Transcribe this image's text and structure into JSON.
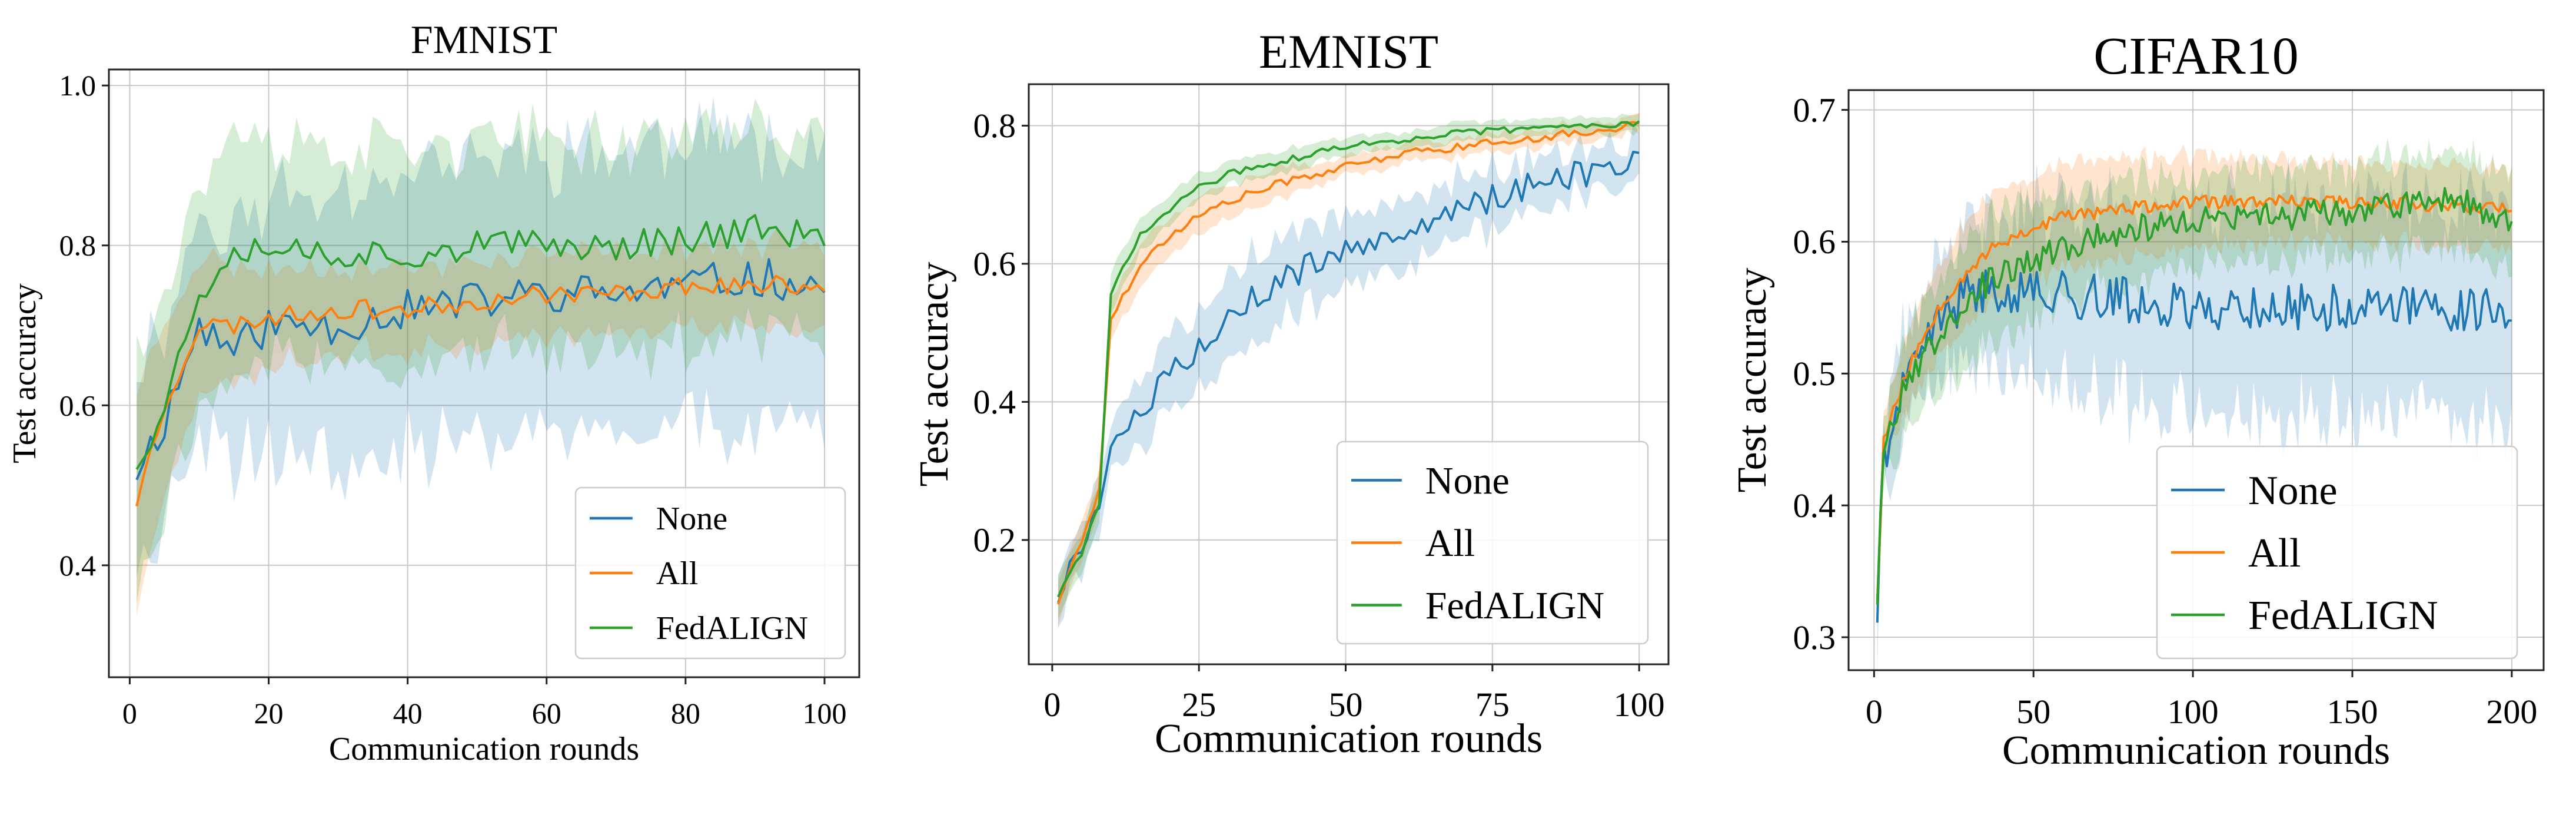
{
  "chart_data": [
    {
      "type": "line",
      "title": "FMNIST",
      "xlabel": "Communication rounds",
      "ylabel": "Test accuracy",
      "xlim": [
        -3,
        105
      ],
      "ylim": [
        0.26,
        1.02
      ],
      "xticks": [
        0,
        20,
        40,
        60,
        80,
        100
      ],
      "yticks": [
        0.4,
        0.6,
        0.8,
        1.0
      ],
      "xtick_labels": [
        "0",
        "20",
        "40",
        "60",
        "80",
        "100"
      ],
      "ytick_labels": [
        "0.4",
        "0.6",
        "0.8",
        "1.0"
      ],
      "grid": true,
      "legend_position": "lower-right",
      "rounds": 100,
      "series": [
        {
          "name": "None",
          "color": "#1f77b4",
          "anchors": [
            [
              1,
              0.52
            ],
            [
              5,
              0.58
            ],
            [
              10,
              0.7
            ],
            [
              15,
              0.67
            ],
            [
              20,
              0.7
            ],
            [
              30,
              0.7
            ],
            [
              40,
              0.72
            ],
            [
              50,
              0.73
            ],
            [
              60,
              0.74
            ],
            [
              70,
              0.74
            ],
            [
              80,
              0.75
            ],
            [
              90,
              0.76
            ],
            [
              100,
              0.75
            ]
          ],
          "band_anchors": [
            [
              1,
              0.14
            ],
            [
              5,
              0.12
            ],
            [
              10,
              0.14
            ],
            [
              20,
              0.16
            ],
            [
              40,
              0.18
            ],
            [
              60,
              0.18
            ],
            [
              80,
              0.18
            ],
            [
              100,
              0.18
            ]
          ],
          "noise": 0.025,
          "band_noise": 0.04,
          "seed": 11
        },
        {
          "name": "All",
          "color": "#ff7f0e",
          "anchors": [
            [
              1,
              0.48
            ],
            [
              5,
              0.6
            ],
            [
              10,
              0.7
            ],
            [
              15,
              0.7
            ],
            [
              20,
              0.71
            ],
            [
              30,
              0.72
            ],
            [
              40,
              0.72
            ],
            [
              50,
              0.73
            ],
            [
              60,
              0.74
            ],
            [
              70,
              0.74
            ],
            [
              80,
              0.75
            ],
            [
              90,
              0.75
            ],
            [
              100,
              0.75
            ]
          ],
          "band_anchors": [
            [
              1,
              0.14
            ],
            [
              5,
              0.1
            ],
            [
              20,
              0.06
            ],
            [
              40,
              0.05
            ],
            [
              60,
              0.05
            ],
            [
              80,
              0.05
            ],
            [
              100,
              0.05
            ]
          ],
          "noise": 0.012,
          "band_noise": 0.01,
          "seed": 23
        },
        {
          "name": "FedALIGN",
          "color": "#2ca02c",
          "anchors": [
            [
              1,
              0.53
            ],
            [
              5,
              0.6
            ],
            [
              10,
              0.74
            ],
            [
              15,
              0.8
            ],
            [
              20,
              0.8
            ],
            [
              30,
              0.79
            ],
            [
              40,
              0.79
            ],
            [
              50,
              0.8
            ],
            [
              60,
              0.8
            ],
            [
              70,
              0.8
            ],
            [
              80,
              0.81
            ],
            [
              90,
              0.82
            ],
            [
              100,
              0.81
            ]
          ],
          "band_anchors": [
            [
              1,
              0.16
            ],
            [
              5,
              0.14
            ],
            [
              15,
              0.13
            ],
            [
              30,
              0.13
            ],
            [
              50,
              0.13
            ],
            [
              70,
              0.13
            ],
            [
              90,
              0.13
            ],
            [
              100,
              0.13
            ]
          ],
          "noise": 0.02,
          "band_noise": 0.03,
          "seed": 37
        }
      ]
    },
    {
      "type": "line",
      "title": "EMNIST",
      "xlabel": "Communication rounds",
      "ylabel": "Test accuracy",
      "xlim": [
        -4,
        105
      ],
      "ylim": [
        0.02,
        0.86
      ],
      "xticks": [
        0,
        25,
        50,
        75,
        100
      ],
      "yticks": [
        0.2,
        0.4,
        0.6,
        0.8
      ],
      "xtick_labels": [
        "0",
        "25",
        "50",
        "75",
        "100"
      ],
      "ytick_labels": [
        "0.2",
        "0.4",
        "0.6",
        "0.8"
      ],
      "grid": true,
      "legend_position": "lower-right",
      "rounds": 100,
      "series": [
        {
          "name": "None",
          "color": "#1f77b4",
          "anchors": [
            [
              1,
              0.12
            ],
            [
              5,
              0.2
            ],
            [
              8,
              0.26
            ],
            [
              10,
              0.32
            ],
            [
              15,
              0.38
            ],
            [
              20,
              0.44
            ],
            [
              25,
              0.48
            ],
            [
              30,
              0.53
            ],
            [
              40,
              0.58
            ],
            [
              50,
              0.62
            ],
            [
              60,
              0.65
            ],
            [
              70,
              0.68
            ],
            [
              80,
              0.71
            ],
            [
              90,
              0.73
            ],
            [
              100,
              0.745
            ]
          ],
          "band_anchors": [
            [
              1,
              0.03
            ],
            [
              10,
              0.04
            ],
            [
              20,
              0.06
            ],
            [
              40,
              0.06
            ],
            [
              60,
              0.05
            ],
            [
              80,
              0.04
            ],
            [
              100,
              0.03
            ]
          ],
          "noise": 0.02,
          "band_noise": 0.015,
          "seed": 5
        },
        {
          "name": "All",
          "color": "#ff7f0e",
          "anchors": [
            [
              1,
              0.11
            ],
            [
              5,
              0.2
            ],
            [
              8,
              0.27
            ],
            [
              10,
              0.52
            ],
            [
              15,
              0.6
            ],
            [
              20,
              0.64
            ],
            [
              25,
              0.67
            ],
            [
              30,
              0.69
            ],
            [
              40,
              0.72
            ],
            [
              50,
              0.74
            ],
            [
              60,
              0.76
            ],
            [
              70,
              0.77
            ],
            [
              80,
              0.78
            ],
            [
              90,
              0.79
            ],
            [
              100,
              0.8
            ]
          ],
          "band_anchors": [
            [
              1,
              0.03
            ],
            [
              10,
              0.03
            ],
            [
              20,
              0.03
            ],
            [
              50,
              0.015
            ],
            [
              100,
              0.012
            ]
          ],
          "noise": 0.006,
          "band_noise": 0.004,
          "seed": 17
        },
        {
          "name": "FedALIGN",
          "color": "#2ca02c",
          "anchors": [
            [
              1,
              0.12
            ],
            [
              5,
              0.18
            ],
            [
              8,
              0.25
            ],
            [
              10,
              0.56
            ],
            [
              15,
              0.64
            ],
            [
              20,
              0.68
            ],
            [
              25,
              0.71
            ],
            [
              30,
              0.73
            ],
            [
              40,
              0.75
            ],
            [
              50,
              0.77
            ],
            [
              60,
              0.78
            ],
            [
              70,
              0.79
            ],
            [
              80,
              0.795
            ],
            [
              90,
              0.8
            ],
            [
              100,
              0.805
            ]
          ],
          "band_anchors": [
            [
              1,
              0.03
            ],
            [
              10,
              0.03
            ],
            [
              20,
              0.02
            ],
            [
              50,
              0.013
            ],
            [
              100,
              0.012
            ]
          ],
          "noise": 0.005,
          "band_noise": 0.003,
          "seed": 29
        }
      ]
    },
    {
      "type": "line",
      "title": "CIFAR10",
      "xlabel": "Communication rounds",
      "ylabel": "Test accuracy",
      "xlim": [
        -8,
        210
      ],
      "ylim": [
        0.275,
        0.715
      ],
      "xticks": [
        0,
        50,
        100,
        150,
        200
      ],
      "yticks": [
        0.3,
        0.4,
        0.5,
        0.6,
        0.7
      ],
      "xtick_labels": [
        "0",
        "50",
        "100",
        "150",
        "200"
      ],
      "ytick_labels": [
        "0.3",
        "0.4",
        "0.5",
        "0.6",
        "0.7"
      ],
      "grid": true,
      "legend_position": "lower-right",
      "rounds": 200,
      "series": [
        {
          "name": "None",
          "color": "#1f77b4",
          "anchors": [
            [
              1,
              0.32
            ],
            [
              3,
              0.44
            ],
            [
              10,
              0.49
            ],
            [
              20,
              0.54
            ],
            [
              30,
              0.56
            ],
            [
              40,
              0.565
            ],
            [
              60,
              0.56
            ],
            [
              80,
              0.555
            ],
            [
              100,
              0.55
            ],
            [
              120,
              0.55
            ],
            [
              140,
              0.55
            ],
            [
              160,
              0.55
            ],
            [
              180,
              0.55
            ],
            [
              200,
              0.55
            ]
          ],
          "band_anchors": [
            [
              1,
              0.02
            ],
            [
              10,
              0.04
            ],
            [
              30,
              0.05
            ],
            [
              60,
              0.07
            ],
            [
              100,
              0.08
            ],
            [
              150,
              0.08
            ],
            [
              200,
              0.08
            ]
          ],
          "noise": 0.018,
          "band_noise": 0.02,
          "seed": 41
        },
        {
          "name": "All",
          "color": "#ff7f0e",
          "anchors": [
            [
              1,
              0.33
            ],
            [
              3,
              0.45
            ],
            [
              10,
              0.5
            ],
            [
              20,
              0.55
            ],
            [
              30,
              0.58
            ],
            [
              40,
              0.6
            ],
            [
              50,
              0.61
            ],
            [
              60,
              0.62
            ],
            [
              80,
              0.625
            ],
            [
              100,
              0.63
            ],
            [
              130,
              0.63
            ],
            [
              160,
              0.63
            ],
            [
              200,
              0.625
            ]
          ],
          "band_anchors": [
            [
              1,
              0.02
            ],
            [
              10,
              0.03
            ],
            [
              30,
              0.04
            ],
            [
              60,
              0.04
            ],
            [
              100,
              0.035
            ],
            [
              150,
              0.03
            ],
            [
              200,
              0.03
            ]
          ],
          "noise": 0.005,
          "band_noise": 0.005,
          "seed": 53
        },
        {
          "name": "FedALIGN",
          "color": "#2ca02c",
          "anchors": [
            [
              1,
              0.33
            ],
            [
              3,
              0.45
            ],
            [
              10,
              0.49
            ],
            [
              20,
              0.53
            ],
            [
              30,
              0.56
            ],
            [
              40,
              0.575
            ],
            [
              50,
              0.585
            ],
            [
              60,
              0.595
            ],
            [
              80,
              0.61
            ],
            [
              100,
              0.615
            ],
            [
              130,
              0.62
            ],
            [
              160,
              0.625
            ],
            [
              180,
              0.635
            ],
            [
              200,
              0.615
            ]
          ],
          "band_anchors": [
            [
              1,
              0.02
            ],
            [
              10,
              0.04
            ],
            [
              30,
              0.05
            ],
            [
              60,
              0.04
            ],
            [
              100,
              0.035
            ],
            [
              150,
              0.035
            ],
            [
              200,
              0.04
            ]
          ],
          "noise": 0.011,
          "band_noise": 0.008,
          "seed": 67
        }
      ]
    }
  ]
}
